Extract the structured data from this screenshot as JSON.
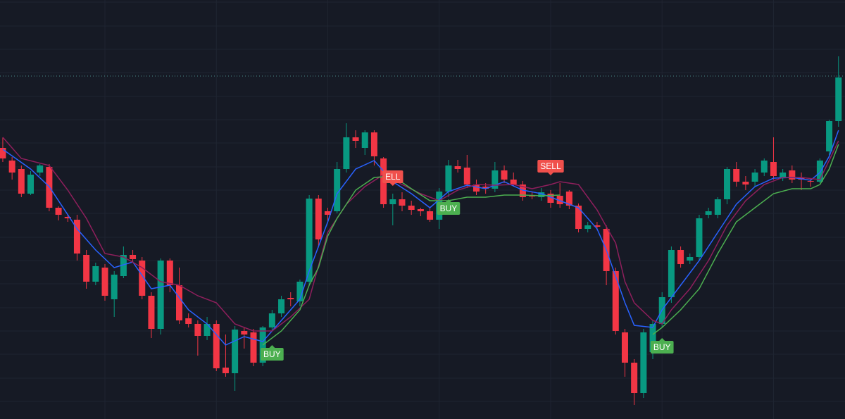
{
  "chart_data": {
    "type": "candlestick",
    "xlim": [
      -0.3,
      90.7
    ],
    "ylim": [
      0,
      595
    ],
    "xticks": [
      11,
      23,
      35,
      47,
      59,
      71,
      83
    ],
    "yticks": [
      25,
      58,
      92,
      125,
      158,
      192,
      225,
      258,
      292,
      325,
      358,
      392,
      425,
      458,
      492,
      525,
      558,
      592
    ],
    "grid": true,
    "up_color": "#089981",
    "down_color": "#f23645",
    "price_line": 487,
    "price_line_color": "#4a8f8a",
    "open": [
      385,
      367,
      355,
      320,
      350,
      358,
      300,
      287,
      283,
      233,
      195,
      215,
      170,
      203,
      233,
      225,
      175,
      128,
      225,
      190,
      143,
      135,
      118,
      135,
      73,
      65,
      125,
      123,
      80,
      130,
      150,
      172,
      167,
      195,
      313,
      295,
      295,
      355,
      400,
      385,
      407,
      370,
      305,
      312,
      303,
      298,
      295,
      283,
      323,
      359,
      357,
      333,
      330,
      327,
      353,
      340,
      333,
      317,
      315,
      320,
      317,
      323,
      303,
      270,
      275,
      270,
      210,
      123,
      80,
      37,
      95,
      135,
      173,
      240,
      225,
      230,
      290,
      290,
      312,
      355,
      337,
      337,
      350,
      365,
      343,
      353,
      343,
      338,
      337,
      380,
      423
    ],
    "high": [
      400,
      372,
      360,
      352,
      362,
      362,
      302,
      290,
      290,
      240,
      222,
      220,
      210,
      245,
      240,
      230,
      180,
      228,
      228,
      215,
      150,
      140,
      145,
      140,
      120,
      132,
      130,
      128,
      132,
      155,
      175,
      180,
      198,
      318,
      318,
      300,
      365,
      420,
      410,
      410,
      410,
      372,
      320,
      322,
      310,
      300,
      300,
      328,
      368,
      368,
      375,
      340,
      335,
      365,
      360,
      350,
      338,
      322,
      328,
      325,
      335,
      325,
      306,
      280,
      280,
      275,
      215,
      128,
      85,
      128,
      140,
      180,
      245,
      245,
      235,
      290,
      300,
      315,
      358,
      365,
      345,
      355,
      370,
      400,
      355,
      360,
      350,
      342,
      370,
      425,
      515
    ],
    "low": [
      365,
      340,
      315,
      318,
      345,
      295,
      282,
      280,
      225,
      185,
      190,
      168,
      145,
      200,
      222,
      170,
      115,
      120,
      180,
      135,
      130,
      90,
      112,
      68,
      60,
      40,
      100,
      75,
      75,
      125,
      145,
      160,
      160,
      190,
      245,
      280,
      292,
      350,
      385,
      375,
      360,
      300,
      275,
      295,
      290,
      288,
      280,
      270,
      315,
      350,
      328,
      318,
      320,
      322,
      335,
      330,
      310,
      312,
      310,
      300,
      300,
      298,
      265,
      265,
      268,
      190,
      120,
      60,
      20,
      30,
      85,
      130,
      165,
      215,
      220,
      225,
      285,
      285,
      305,
      330,
      325,
      330,
      345,
      340,
      338,
      335,
      325,
      330,
      335,
      375,
      415
    ],
    "close": [
      370,
      350,
      320,
      347,
      360,
      300,
      290,
      285,
      235,
      195,
      217,
      175,
      205,
      233,
      227,
      175,
      128,
      225,
      190,
      140,
      135,
      118,
      135,
      72,
      65,
      127,
      120,
      80,
      130,
      150,
      170,
      170,
      195,
      313,
      255,
      290,
      355,
      400,
      395,
      407,
      373,
      305,
      312,
      303,
      297,
      295,
      283,
      323,
      360,
      355,
      333,
      323,
      327,
      353,
      340,
      333,
      315,
      316,
      322,
      307,
      305,
      303,
      270,
      275,
      273,
      210,
      125,
      80,
      37,
      123,
      135,
      173,
      240,
      220,
      230,
      285,
      295,
      312,
      355,
      337,
      333,
      350,
      367,
      345,
      350,
      340,
      340,
      337,
      367,
      423,
      485
    ],
    "lines": [
      {
        "color": "#2962ff",
        "x": [
          0,
          3,
          5,
          8,
          10,
          12,
          14,
          16,
          18,
          20,
          22,
          24,
          26,
          28,
          30,
          32,
          33,
          35,
          36,
          38,
          40,
          42,
          44,
          46,
          48,
          50,
          52,
          54,
          56,
          58,
          60,
          62,
          64,
          65,
          67,
          68,
          70,
          71,
          73,
          75,
          77,
          79,
          81,
          83,
          85,
          87,
          88,
          89,
          90
        ],
        "values": [
          383,
          355,
          330,
          270,
          240,
          215,
          223,
          185,
          190,
          155,
          135,
          105,
          117,
          110,
          140,
          170,
          210,
          280,
          320,
          355,
          367,
          337,
          320,
          300,
          323,
          332,
          327,
          337,
          325,
          320,
          310,
          300,
          270,
          240,
          165,
          133,
          130,
          155,
          190,
          225,
          265,
          305,
          330,
          342,
          343,
          339,
          350,
          373,
          410
        ]
      },
      {
        "color": "#8e1f5c",
        "x": [
          0,
          2,
          5,
          7,
          9,
          11,
          13,
          15,
          17,
          19,
          21,
          23,
          25,
          27,
          29,
          31,
          33,
          35,
          37,
          39,
          41,
          43,
          45,
          47,
          49,
          51,
          53,
          55,
          57,
          59,
          60,
          62,
          64,
          65,
          66,
          67,
          68,
          70,
          71,
          72,
          74,
          76,
          78,
          80,
          82,
          84,
          86,
          88,
          90
        ],
        "values": [
          400,
          370,
          360,
          325,
          285,
          235,
          230,
          215,
          195,
          190,
          175,
          165,
          135,
          125,
          125,
          145,
          170,
          265,
          305,
          330,
          347,
          333,
          320,
          310,
          325,
          333,
          332,
          333,
          327,
          333,
          337,
          333,
          297,
          273,
          250,
          195,
          165,
          140,
          135,
          155,
          185,
          225,
          275,
          310,
          333,
          343,
          343,
          340,
          395
        ]
      },
      {
        "color": "#4caf50",
        "x": [
          28,
          30,
          32,
          33,
          34,
          35,
          36,
          38,
          40,
          42,
          44,
          46,
          48,
          50,
          52,
          54,
          56,
          58,
          60,
          65,
          70,
          71,
          73,
          75,
          77,
          79,
          81,
          83,
          85,
          87,
          88,
          89,
          90
        ],
        "values": [
          105,
          125,
          155,
          190,
          215,
          260,
          285,
          325,
          343,
          345,
          327,
          310,
          310,
          315,
          315,
          318,
          318,
          317,
          318,
          null,
          120,
          130,
          155,
          185,
          235,
          280,
          300,
          320,
          327,
          327,
          333,
          355,
          390
        ]
      }
    ],
    "annotations": [
      {
        "text": "BUY",
        "x": 29,
        "y": 92,
        "kind": "buy"
      },
      {
        "text": "ELL",
        "x": 42,
        "y": 344,
        "kind": "sell"
      },
      {
        "text": "BUY",
        "x": 48,
        "y": 299,
        "kind": "buy"
      },
      {
        "text": "SELL",
        "x": 59,
        "y": 359,
        "kind": "sell"
      },
      {
        "text": "BUY",
        "x": 71,
        "y": 102,
        "kind": "buy"
      }
    ],
    "buy_color": "#4caf50",
    "sell_color": "#f0504c"
  }
}
